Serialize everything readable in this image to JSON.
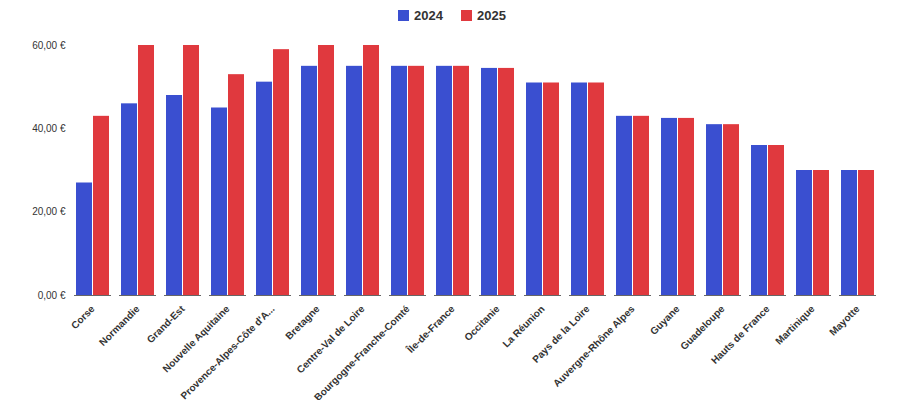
{
  "chart_data": {
    "type": "bar",
    "categories": [
      "Corse",
      "Normandie",
      "Grand-Est",
      "Nouvelle Aquitaine",
      "Provence-Alpes-Côte d'A...",
      "Bretagne",
      "Centre-Val de Loire",
      "Bourgogne-Franche-Comté",
      "Île-de-France",
      "Occitanie",
      "La Réunion",
      "Pays de la Loire",
      "Auvergne-Rhône Alpes",
      "Guyane",
      "Guadeloupe",
      "Hauts de France",
      "Martinique",
      "Mayotte"
    ],
    "series": [
      {
        "name": "2024",
        "color": "#3a4fd0",
        "values": [
          27,
          46,
          48,
          45,
          51.2,
          55,
          55,
          55,
          55,
          54.5,
          51,
          51,
          43,
          42.5,
          41,
          36,
          30,
          30
        ]
      },
      {
        "name": "2025",
        "color": "#e0393e",
        "values": [
          43,
          60,
          60,
          53,
          59,
          60,
          60,
          55,
          55,
          54.5,
          51,
          51,
          43,
          42.5,
          41,
          36,
          30,
          30
        ]
      }
    ],
    "ylim": [
      0,
      60
    ],
    "yticks": [
      {
        "value": 0,
        "label": "0,00 €"
      },
      {
        "value": 20,
        "label": "20,00 €"
      },
      {
        "value": 40,
        "label": "40,00 €"
      },
      {
        "value": 60,
        "label": "60,00 €"
      }
    ],
    "grid": false,
    "legend": "top"
  }
}
